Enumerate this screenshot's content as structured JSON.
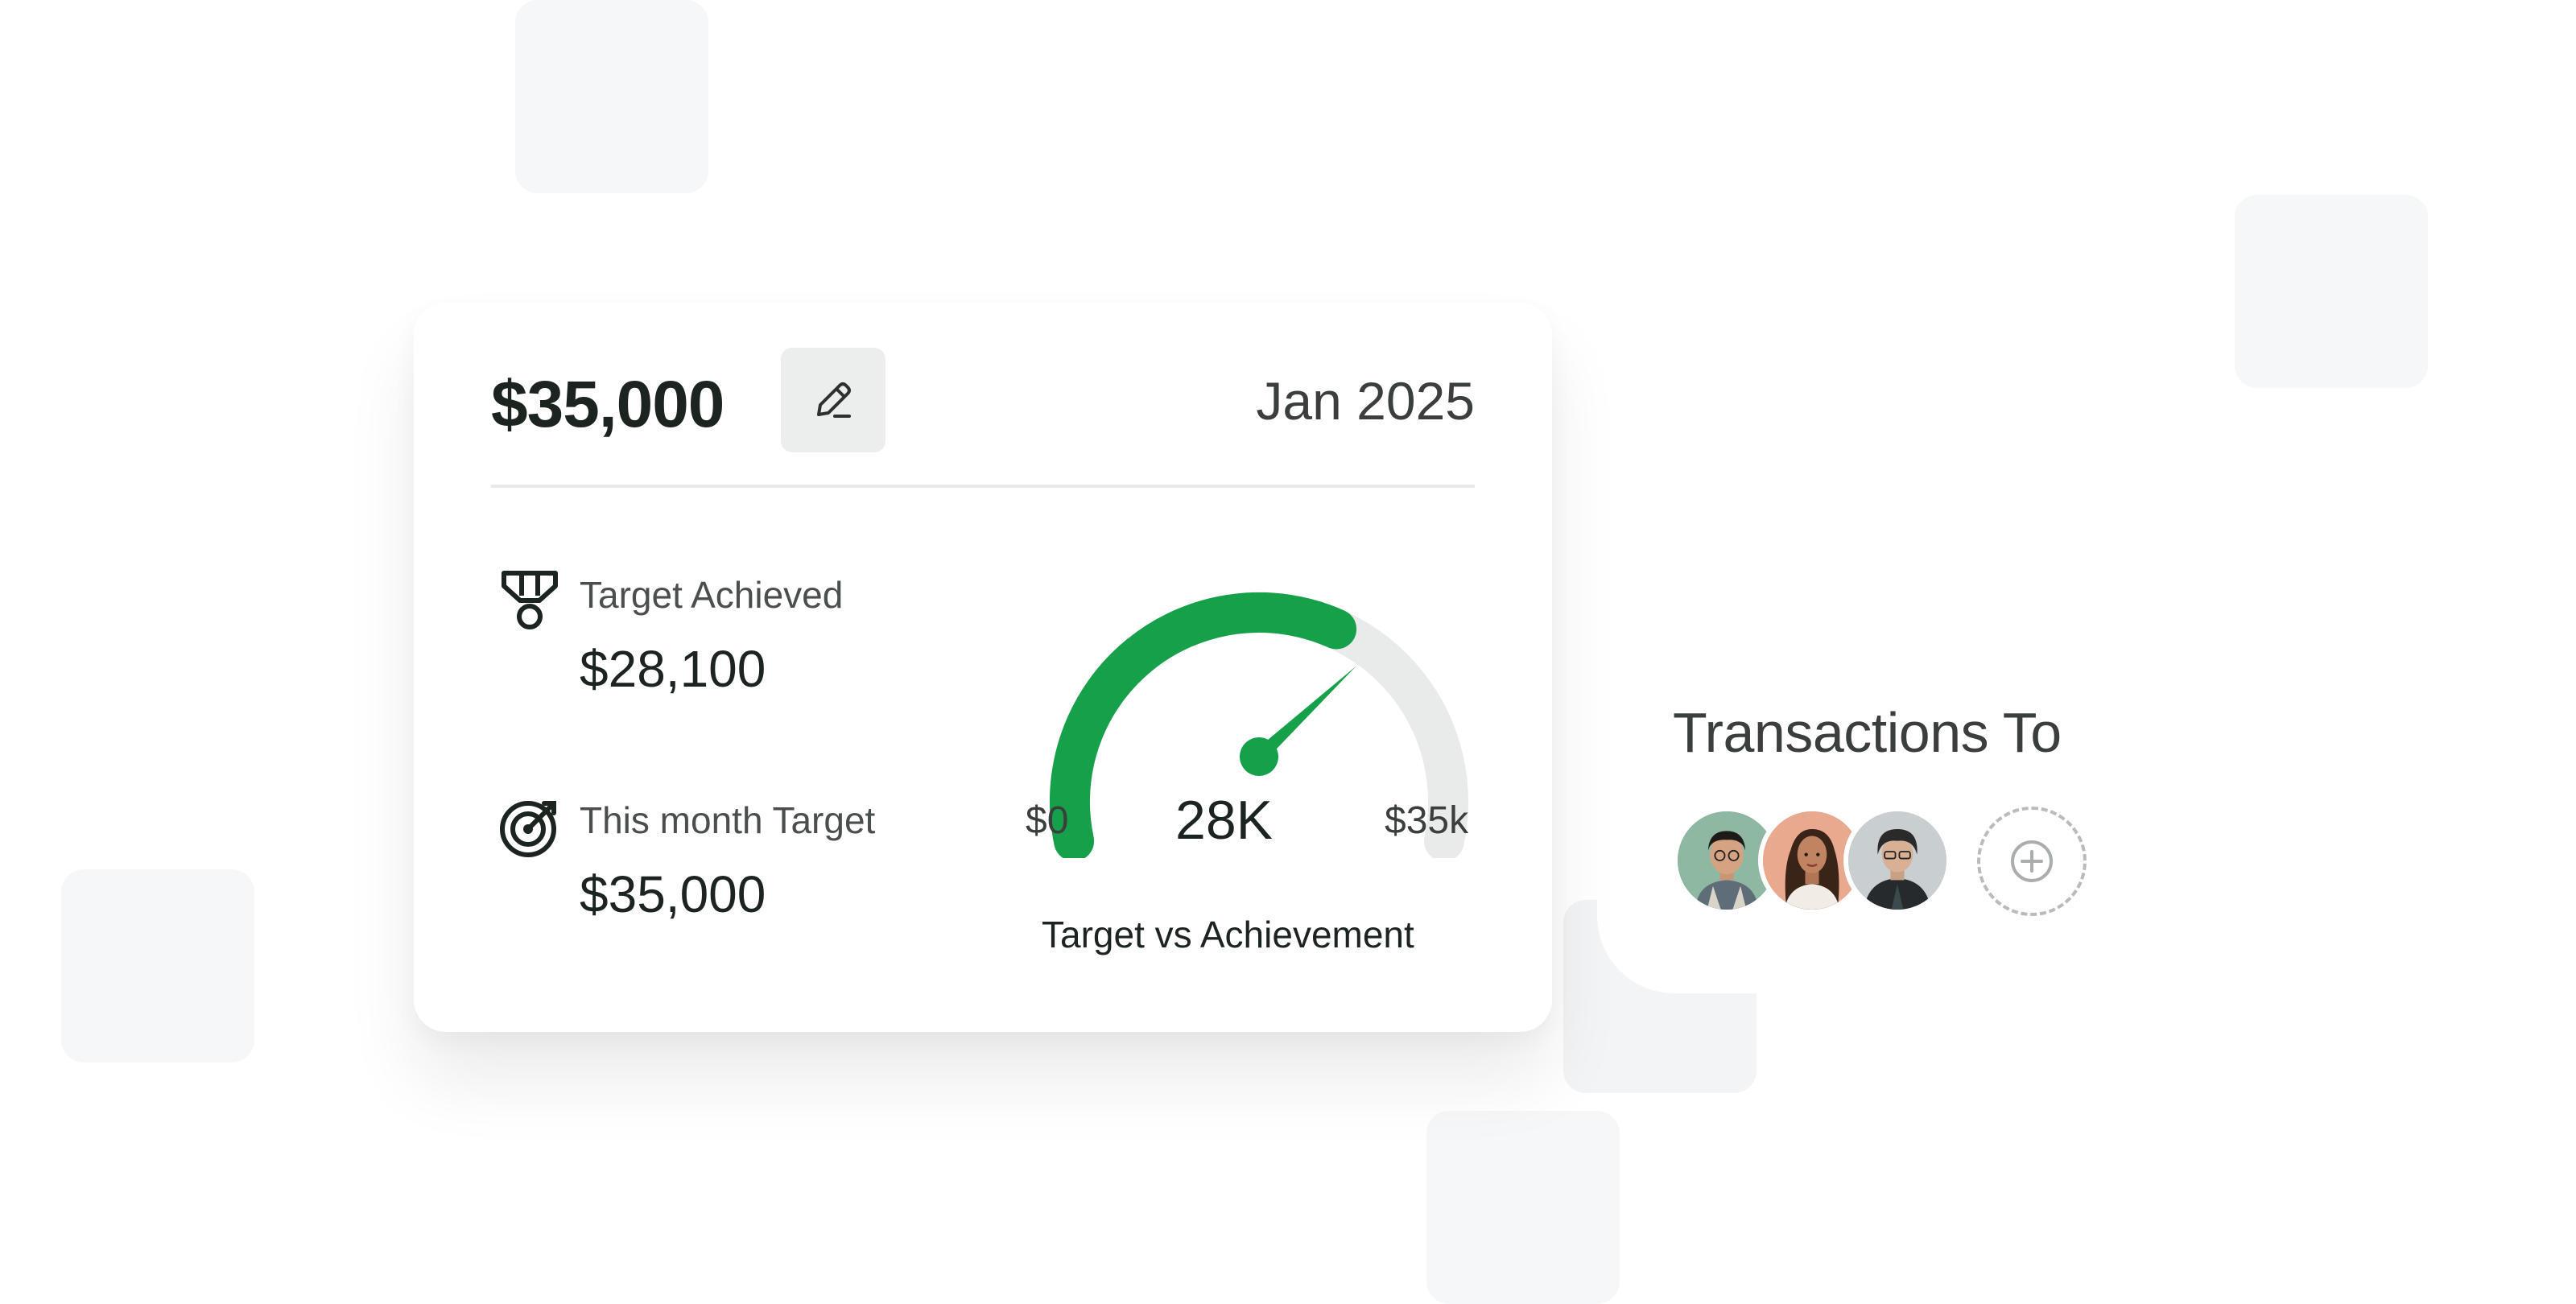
{
  "target_card": {
    "amount": "$35,000",
    "date": "Jan 2025",
    "achieved_label": "Target Achieved",
    "achieved_value": "$28,100",
    "month_target_label": "This month Target",
    "month_target_value": "$35,000",
    "gauge": {
      "min_label": "$0",
      "max_label": "$35k",
      "value_label": "28K",
      "title": "Target vs Achievement",
      "fraction": 0.803,
      "fill_color": "#16a04a",
      "track_color": "#e9ebea"
    }
  },
  "transactions": {
    "title": "Transactions To",
    "people": [
      "avatar-1",
      "avatar-2",
      "avatar-3"
    ]
  }
}
